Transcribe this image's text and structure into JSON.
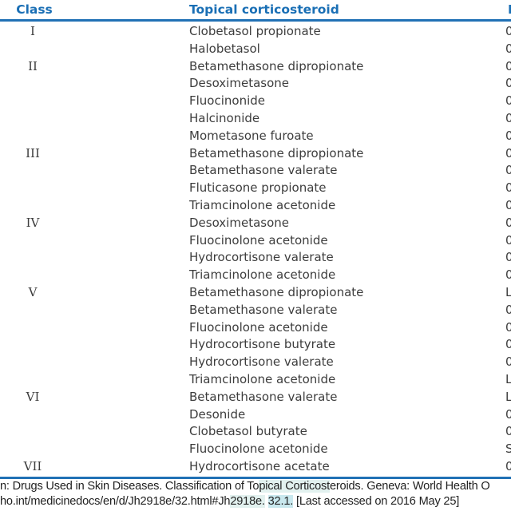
{
  "table": {
    "headers": {
      "class": "Class",
      "drug": "Topical corticosteroid",
      "third_partial": "F"
    },
    "rows": [
      {
        "class": "I",
        "drug": "Clobetasol propionate",
        "third_partial": "0"
      },
      {
        "class": "",
        "drug": "Halobetasol",
        "third_partial": "0"
      },
      {
        "class": "II",
        "drug": "Betamethasone dipropionate",
        "third_partial": "0"
      },
      {
        "class": "",
        "drug": "Desoximetasone",
        "third_partial": "0"
      },
      {
        "class": "",
        "drug": "Fluocinonide",
        "third_partial": "0"
      },
      {
        "class": "",
        "drug": "Halcinonide",
        "third_partial": "0"
      },
      {
        "class": "",
        "drug": "Mometasone furoate",
        "third_partial": "0"
      },
      {
        "class": "III",
        "drug": "Betamethasone dipropionate",
        "third_partial": "0"
      },
      {
        "class": "",
        "drug": "Betamethasone valerate",
        "third_partial": "0"
      },
      {
        "class": "",
        "drug": "Fluticasone propionate",
        "third_partial": "0"
      },
      {
        "class": "",
        "drug": "Triamcinolone acetonide",
        "third_partial": "0"
      },
      {
        "class": "IV",
        "drug": "Desoximetasone",
        "third_partial": "0"
      },
      {
        "class": "",
        "drug": "Fluocinolone acetonide",
        "third_partial": "0"
      },
      {
        "class": "",
        "drug": "Hydrocortisone valerate",
        "third_partial": "0"
      },
      {
        "class": "",
        "drug": "Triamcinolone acetonide",
        "third_partial": "0"
      },
      {
        "class": "V",
        "drug": "Betamethasone dipropionate",
        "third_partial": "L"
      },
      {
        "class": "",
        "drug": "Betamethasone valerate",
        "third_partial": "0"
      },
      {
        "class": "",
        "drug": "Fluocinolone acetonide",
        "third_partial": "0"
      },
      {
        "class": "",
        "drug": "Hydrocortisone butyrate",
        "third_partial": "0"
      },
      {
        "class": "",
        "drug": "Hydrocortisone valerate",
        "third_partial": "0"
      },
      {
        "class": "",
        "drug": "Triamcinolone acetonide",
        "third_partial": "L"
      },
      {
        "class": "VI",
        "drug": "Betamethasone valerate",
        "third_partial": "L"
      },
      {
        "class": "",
        "drug": "Desonide",
        "third_partial": "0"
      },
      {
        "class": "",
        "drug": "Clobetasol butyrate",
        "third_partial": "0"
      },
      {
        "class": "",
        "drug": "Fluocinolone acetonide",
        "third_partial": "S"
      },
      {
        "class": "VII",
        "drug": "Hydrocortisone acetate",
        "third_partial": "0"
      }
    ]
  },
  "footer": {
    "line1_pre": "n: Drugs Used in Skin Diseases. Classification of To",
    "line1_hl": "pical Corticost",
    "line1_post": "eroids. Geneva: World Health O",
    "line2_pre": "ho.int/medicinedocs/en/d/Jh2918e/32.html#Jh",
    "line2_hl1": "2918e.",
    "line2_mid": " ",
    "line2_hl2": "32.1.",
    "line2_post": " [Last accessed on 2016 May 25]"
  },
  "colors": {
    "accent_blue": "#1a6fb5",
    "rule_blue": "#2171b5",
    "body_text": "#3d3d3d",
    "highlight_strong": "#c9e8ee",
    "highlight_light": "#e2f1ef"
  }
}
